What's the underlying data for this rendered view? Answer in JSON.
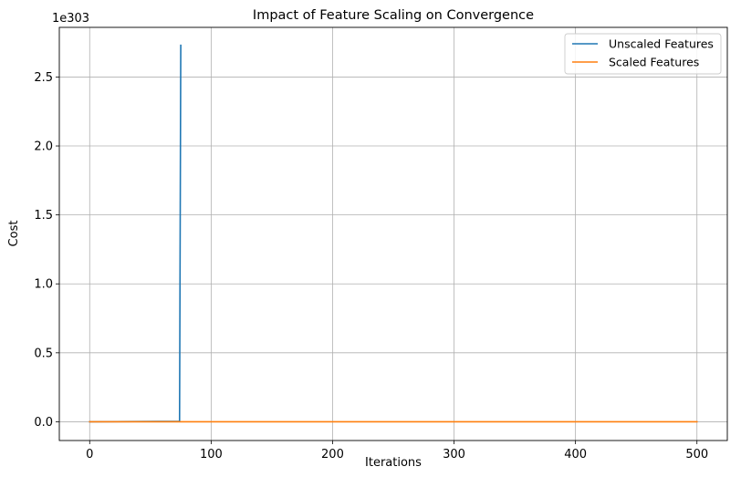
{
  "chart_data": {
    "type": "line",
    "title": "Impact of Feature Scaling on Convergence",
    "xlabel": "Iterations",
    "ylabel": "Cost",
    "y_offset_text": "1e303",
    "xlim": [
      -25,
      525
    ],
    "ylim": [
      -0.136,
      2.86
    ],
    "x_ticks": [
      0,
      100,
      200,
      300,
      400,
      500
    ],
    "y_ticks": [
      0.0,
      0.5,
      1.0,
      1.5,
      2.0,
      2.5
    ],
    "grid": true,
    "legend_position": "top-right",
    "series": [
      {
        "name": "Unscaled Features",
        "color": "#1f77b4",
        "x": [
          0,
          74,
          75
        ],
        "y": [
          0.0,
          0.003,
          2.73
        ]
      },
      {
        "name": "Scaled Features",
        "color": "#ff7f0e",
        "x": [
          0,
          500
        ],
        "y": [
          0.0,
          0.0
        ]
      }
    ]
  }
}
